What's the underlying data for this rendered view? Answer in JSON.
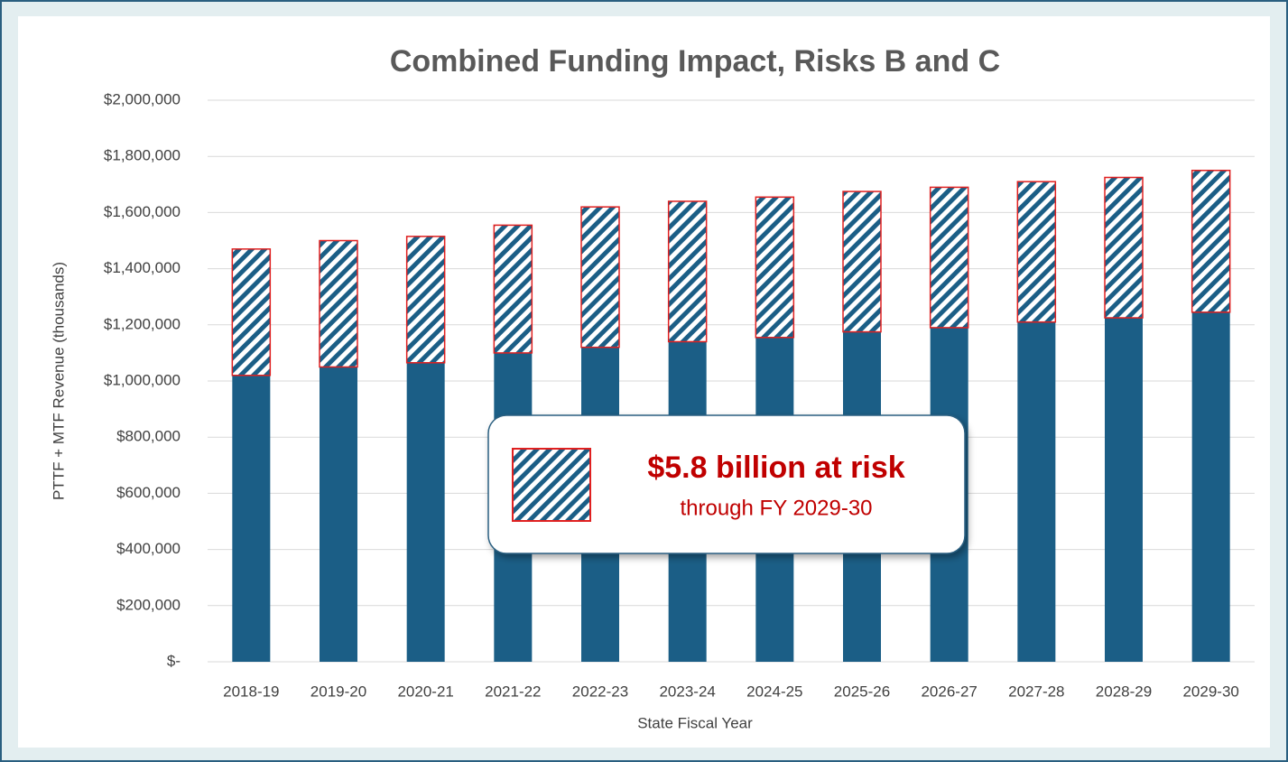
{
  "chart_data": {
    "type": "stacked_bar",
    "title": "Combined Funding Impact, Risks B and C",
    "x_label": "State Fiscal Year",
    "y_label": "PTTF + MTF Revenue (thousands)",
    "categories": [
      "2018-19",
      "2019-20",
      "2020-21",
      "2021-22",
      "2022-23",
      "2023-24",
      "2024-25",
      "2025-26",
      "2026-27",
      "2027-28",
      "2028-29",
      "2029-30"
    ],
    "series": [
      {
        "color": "#1b5e86",
        "values": [
          1020000,
          1050000,
          1065000,
          1100000,
          1120000,
          1140000,
          1155000,
          1175000,
          1190000,
          1210000,
          1225000,
          1245000
        ]
      },
      {
        "color": "#1b5e86",
        "edge_color": "#e02020",
        "hatch": true,
        "values": [
          450000,
          450000,
          450000,
          455000,
          500000,
          500000,
          500000,
          500000,
          500000,
          500000,
          500000,
          505000
        ]
      }
    ],
    "ylim": [
      0,
      2000000
    ],
    "yticks": [
      {
        "value": 0,
        "label": "$-"
      },
      {
        "value": 200000,
        "label": "$200,000"
      },
      {
        "value": 400000,
        "label": "$400,000"
      },
      {
        "value": 600000,
        "label": "$600,000"
      },
      {
        "value": 800000,
        "label": "$800,000"
      },
      {
        "value": 1000000,
        "label": "$1,000,000"
      },
      {
        "value": 1200000,
        "label": "$1,200,000"
      },
      {
        "value": 1400000,
        "label": "$1,400,000"
      },
      {
        "value": 1600000,
        "label": "$1,600,000"
      },
      {
        "value": 1800000,
        "label": "$1,800,000"
      },
      {
        "value": 2000000,
        "label": "$2,000,000"
      }
    ],
    "grid": true,
    "annotation": {
      "headline": "$5.8 billion at risk",
      "subtext": "through FY 2029-30",
      "color": "#c00000"
    }
  }
}
